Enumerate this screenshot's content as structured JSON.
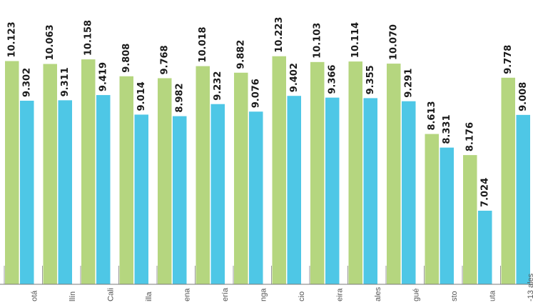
{
  "chart_data": {
    "type": "bar",
    "categories": [
      "otá",
      "llín",
      "Cali",
      "illa",
      "ena",
      "ería",
      "nga",
      "cio",
      "eira",
      "ales",
      "gué",
      "sto",
      "uta",
      "-13 ales"
    ],
    "series": [
      {
        "color": "#b5d67f",
        "values": [
          10.123,
          10.063,
          10.158,
          9.808,
          9.768,
          10.018,
          9.882,
          10.223,
          10.103,
          10.114,
          10.07,
          8.613,
          8.176,
          9.778
        ]
      },
      {
        "color": "#4ec7e6",
        "values": [
          9.302,
          9.311,
          9.419,
          9.014,
          8.982,
          9.232,
          9.076,
          9.402,
          9.366,
          9.355,
          9.291,
          8.331,
          7.024,
          9.008
        ]
      }
    ],
    "value_labels": [
      [
        "10.123",
        "10.063",
        "10.158",
        "9.808",
        "9.768",
        "10.018",
        "9.882",
        "10.223",
        "10.103",
        "10.114",
        "10.070",
        "8.613",
        "8.176",
        "9.778"
      ],
      [
        "9.302",
        "9.311",
        "9.419",
        "9.014",
        "8.982",
        "9.232",
        "9.076",
        "9.402",
        "9.366",
        "9.355",
        "9.291",
        "8.331",
        "7.024",
        "9.008"
      ]
    ],
    "ylim": [
      5.5,
      10.5
    ],
    "grid": false,
    "legend": "none"
  }
}
